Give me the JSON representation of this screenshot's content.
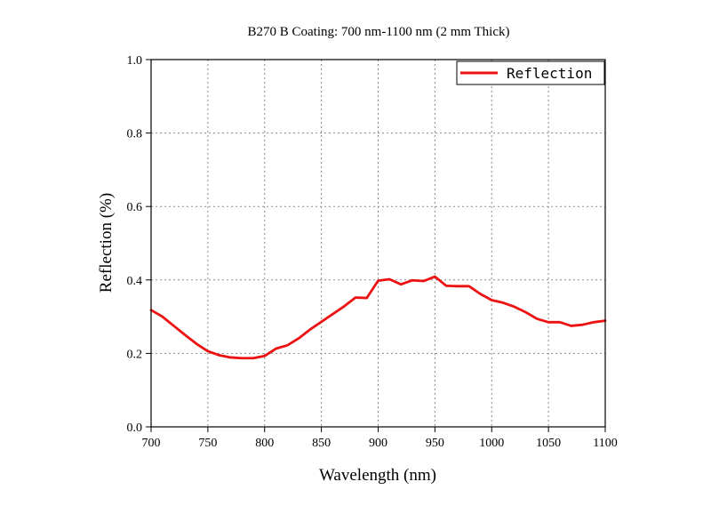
{
  "chart_data": {
    "type": "line",
    "title": "B270 B Coating: 700 nm-1100 nm (2 mm Thick)",
    "xlabel": "Wavelength (nm)",
    "ylabel": "Reflection (%)",
    "xlim": [
      700,
      1100
    ],
    "ylim": [
      0,
      1.0
    ],
    "xticks": [
      700,
      750,
      800,
      850,
      900,
      950,
      1000,
      1050,
      1100
    ],
    "xtick_labels": [
      "700",
      "750",
      "800",
      "850",
      "900",
      "950",
      "1000",
      "1050",
      "1100"
    ],
    "yticks": [
      0,
      0.2,
      0.4,
      0.6,
      0.8,
      1.0
    ],
    "ytick_labels": [
      "0.0",
      "0.2",
      "0.4",
      "0.6",
      "0.8",
      "1.0"
    ],
    "grid": true,
    "legend_position": "top-right",
    "series": [
      {
        "name": "Reflection",
        "color": "#ee1111",
        "x": [
          700,
          710,
          720,
          730,
          740,
          750,
          760,
          770,
          780,
          790,
          800,
          810,
          820,
          830,
          840,
          850,
          860,
          870,
          880,
          890,
          900,
          910,
          920,
          930,
          940,
          950,
          960,
          970,
          980,
          990,
          1000,
          1010,
          1020,
          1030,
          1040,
          1050,
          1060,
          1070,
          1080,
          1090,
          1100
        ],
        "y": [
          0.318,
          0.3,
          0.275,
          0.25,
          0.226,
          0.206,
          0.195,
          0.189,
          0.187,
          0.187,
          0.193,
          0.213,
          0.222,
          0.241,
          0.265,
          0.286,
          0.307,
          0.328,
          0.352,
          0.351,
          0.398,
          0.402,
          0.388,
          0.399,
          0.397,
          0.409,
          0.384,
          0.383,
          0.383,
          0.362,
          0.345,
          0.338,
          0.327,
          0.312,
          0.294,
          0.285,
          0.285,
          0.275,
          0.278,
          0.285,
          0.289
        ]
      }
    ]
  }
}
